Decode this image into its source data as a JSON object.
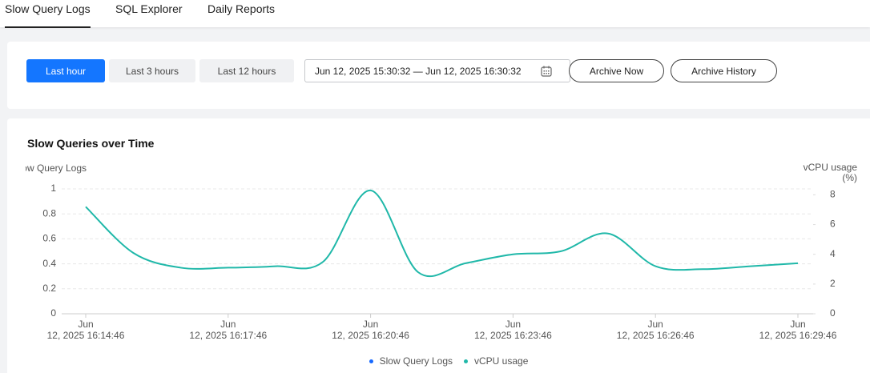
{
  "tabs": [
    "Slow Query Logs",
    "SQL Explorer",
    "Daily Reports"
  ],
  "active_tab": 0,
  "time_ranges": [
    "Last hour",
    "Last 3 hours",
    "Last 12 hours"
  ],
  "active_range": 0,
  "date_range": "Jun 12, 2025 15:30:32 — Jun 12, 2025 16:30:32",
  "actions": [
    "Archive Now",
    "Archive History"
  ],
  "chart_data": {
    "type": "line",
    "title": "Slow Queries over Time",
    "y_label": "Slow Query Logs",
    "y2_label": "vCPU usage\n(%)",
    "categories": [
      "Jun\n12, 2025 16:14:46",
      null,
      null,
      "Jun\n12, 2025 16:17:46",
      null,
      null,
      "Jun\n12, 2025 16:20:46",
      null,
      null,
      "Jun\n12, 2025 16:23:46",
      null,
      null,
      "Jun\n12, 2025 16:26:46",
      null,
      null,
      "Jun\n12, 2025 16:29:46"
    ],
    "series": [
      {
        "name": "Slow Query Logs",
        "color": "#1769ff",
        "values": [
          null,
          null,
          null,
          null,
          null,
          null,
          null,
          null,
          null,
          null,
          null,
          null,
          null,
          null,
          null,
          null
        ]
      },
      {
        "name": "vCPU usage",
        "color": "#20b8a9",
        "axis": "y2",
        "values": [
          7.2,
          4.1,
          3.1,
          3.1,
          3.2,
          3.5,
          8.3,
          2.8,
          3.4,
          4.0,
          4.2,
          5.4,
          3.2,
          3.0,
          3.2,
          3.4
        ]
      }
    ],
    "ylim": [
      0,
      1
    ],
    "yticks": [
      0,
      0.2,
      0.4,
      0.6,
      0.8,
      1
    ],
    "y2lim": [
      0,
      8.4
    ],
    "y2ticks": [
      0,
      2,
      4,
      6,
      8
    ],
    "grid": true,
    "legend": "bottom"
  }
}
